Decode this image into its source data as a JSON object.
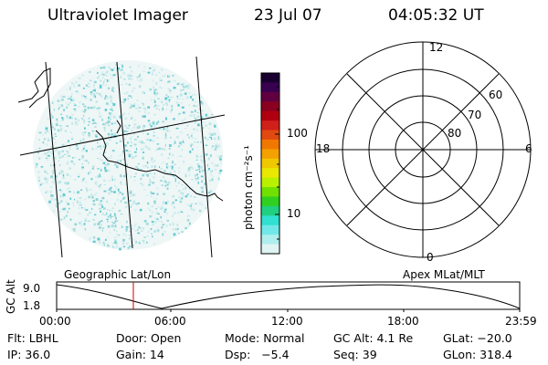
{
  "header": {
    "title": "Ultraviolet Imager",
    "date": "23 Jul 07",
    "time": "04:05:32 UT"
  },
  "colorbar": {
    "unit_label": "photon cm⁻²s⁻¹",
    "ticks": [
      "100",
      "10"
    ],
    "colors": [
      "#1a0030",
      "#3a0050",
      "#600040",
      "#8a0020",
      "#b00010",
      "#d0201a",
      "#e04a10",
      "#f07800",
      "#f4a000",
      "#f0c800",
      "#e8e800",
      "#b8f000",
      "#70e000",
      "#30d020",
      "#20d080",
      "#30e0d0",
      "#70e8e8",
      "#b0eeee",
      "#e0f4f4"
    ]
  },
  "left_panel": {
    "label": "Geographic Lat/Lon"
  },
  "right_panel": {
    "label": "Apex MLat/MLT",
    "mlt_labels": {
      "top": "12",
      "left": "18",
      "right": "6",
      "bottom": "0"
    },
    "lat_labels": [
      "60",
      "70",
      "80"
    ]
  },
  "timeline": {
    "y_axis_label": "GC Alt",
    "y_ticks": [
      "9.0",
      "1.8"
    ],
    "x_ticks": [
      "00:00",
      "06:00",
      "12:00",
      "18:00",
      "23:59"
    ],
    "marker_color": "#cc0000"
  },
  "info": {
    "filter": "Flt: LBHL",
    "door": "Door: Open",
    "mode": "Mode: Normal",
    "gc_alt": "GC Alt: 4.1 Re",
    "glat": "GLat: −20.0",
    "ip": "IP: 36.0",
    "gain": "Gain: 14",
    "dsp": "Dsp:   −5.4",
    "seq": "Seq: 39",
    "glon": "GLon: 318.4"
  }
}
